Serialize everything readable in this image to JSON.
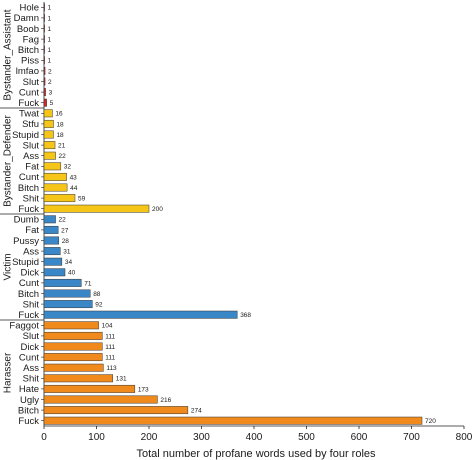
{
  "chart_data": {
    "type": "bar",
    "orientation": "horizontal",
    "xlabel": "Total number of profane words used by four roles",
    "xlim": [
      0,
      800
    ],
    "xticks": [
      0,
      100,
      200,
      300,
      400,
      500,
      600,
      700,
      800
    ],
    "grid": false,
    "groups": [
      {
        "name": "Bystander_Assistant",
        "color": "#d62728",
        "categories": [
          "Hole",
          "Damn",
          "Boob",
          "Fag",
          "Bitch",
          "Piss",
          "lmfao",
          "Slut",
          "Cunt",
          "Fuck"
        ],
        "values": [
          1,
          1,
          1,
          1,
          1,
          1,
          2,
          2,
          3,
          5
        ]
      },
      {
        "name": "Bystander_Defender",
        "color": "#f5c518",
        "categories": [
          "Twat",
          "Stfu",
          "Stupid",
          "Slut",
          "Ass",
          "Fat",
          "Cunt",
          "Bitch",
          "Shit",
          "Fuck"
        ],
        "values": [
          16,
          18,
          18,
          21,
          22,
          32,
          43,
          44,
          59,
          200
        ]
      },
      {
        "name": "Victim",
        "color": "#3a87c8",
        "categories": [
          "Dumb",
          "Fat",
          "Pussy",
          "Ass",
          "Stupid",
          "Dick",
          "Cunt",
          "Bitch",
          "Shit",
          "Fuck"
        ],
        "values": [
          22,
          27,
          28,
          31,
          34,
          40,
          71,
          88,
          92,
          368
        ]
      },
      {
        "name": "Harasser",
        "color": "#f08a1c",
        "categories": [
          "Faggot",
          "Slut",
          "Dick",
          "Cunt",
          "Ass",
          "Shit",
          "Hate",
          "Ugly",
          "Bitch",
          "Fuck"
        ],
        "values": [
          104,
          111,
          111,
          111,
          113,
          131,
          173,
          216,
          274,
          720
        ]
      }
    ]
  }
}
